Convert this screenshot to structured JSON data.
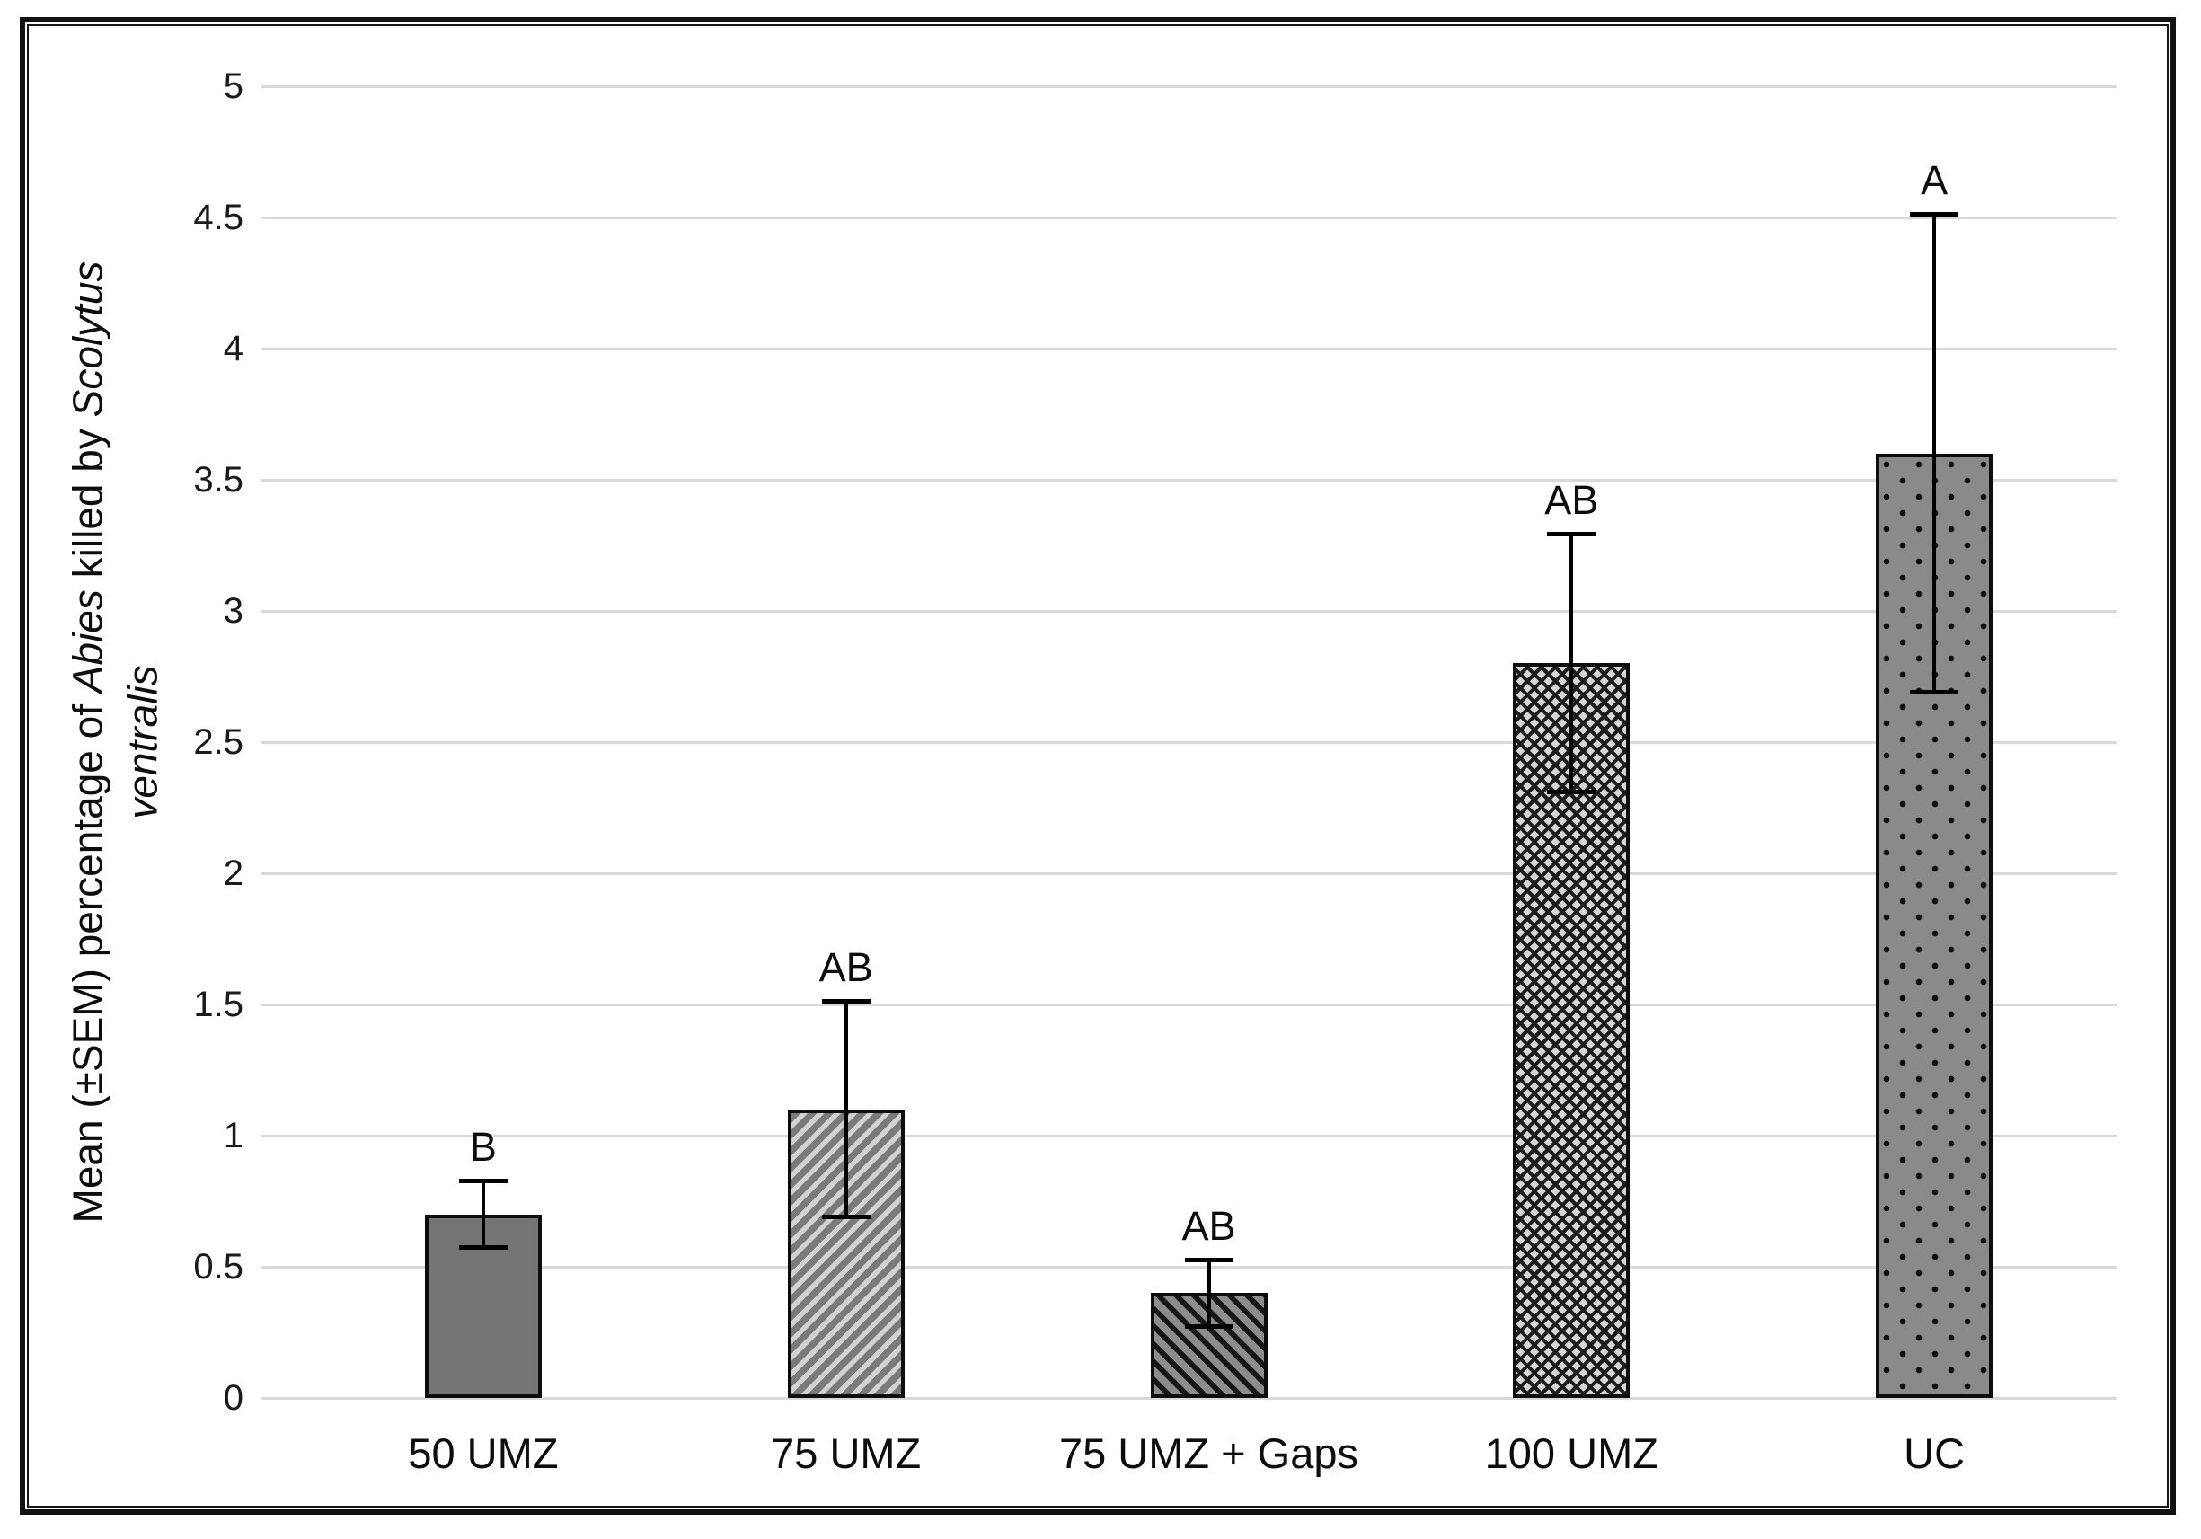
{
  "figure": {
    "background_color": "#ffffff",
    "frame_color": "#121212",
    "gridline_color": "#d9d9d9",
    "bar_border_color": "#0d0d0d",
    "error_bar_color": "#000000",
    "text_color": "#1a1a1a"
  },
  "chart_data": {
    "type": "bar",
    "title": "",
    "xlabel": "",
    "ylabel": "Mean (±SEM) percentage of Abies killed by Scolytus ventralis",
    "ylabel_lines": [
      [
        {
          "text": "Mean (±SEM) percentage of ",
          "italic": false
        },
        {
          "text": "Abies",
          "italic": true
        },
        {
          "text": " killed by ",
          "italic": false
        },
        {
          "text": "Scolytus",
          "italic": true
        }
      ],
      [
        {
          "text": "ventralis",
          "italic": true
        }
      ]
    ],
    "categories": [
      "50 UMZ",
      "75 UMZ",
      "75 UMZ + Gaps",
      "100 UMZ",
      "UC"
    ],
    "values": [
      0.7,
      1.1,
      0.4,
      2.8,
      3.6
    ],
    "sem": [
      0.135,
      0.42,
      0.135,
      0.5,
      0.92
    ],
    "error_upper": [
      0.835,
      1.52,
      0.535,
      3.3,
      4.52
    ],
    "error_lower": [
      0.565,
      0.68,
      0.265,
      2.3,
      2.68
    ],
    "sig_letters": [
      "B",
      "AB",
      "AB",
      "AB",
      "A"
    ],
    "bar_patterns": [
      "solid",
      "diag-light",
      "diag-dark",
      "crosshatch",
      "dots"
    ],
    "bar_pattern_descriptions": [
      "solid gray",
      "light diagonal stripes up-right",
      "dark diagonal stripes down-right",
      "dark crosshatch on light gray",
      "black dots on gray"
    ],
    "bar_fill_colors": [
      "#757575",
      "#7a7a7a",
      "#8d8d8d",
      "#d6d6d6",
      "#8a8a8a"
    ],
    "ylim": [
      0,
      5
    ],
    "ytick_step": 0.5,
    "yticks": [
      "0",
      "0.5",
      "1",
      "1.5",
      "2",
      "2.5",
      "3",
      "3.5",
      "4",
      "4.5",
      "5"
    ],
    "grid": true,
    "legend": "none"
  }
}
